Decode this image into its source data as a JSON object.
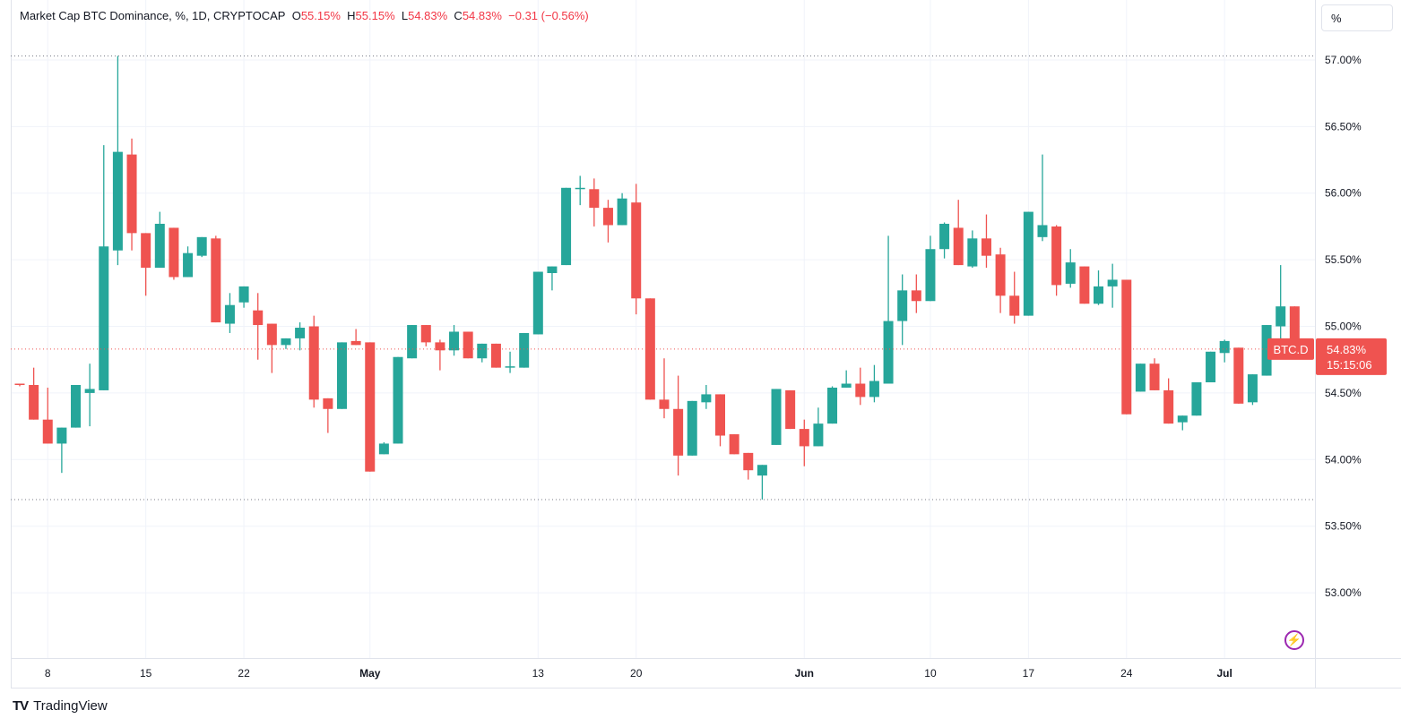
{
  "legend": {
    "title": "Market Cap BTC Dominance, %, 1D, CRYPTOCAP",
    "o_label": "O",
    "o": "55.15%",
    "h_label": "H",
    "h": "55.15%",
    "l_label": "L",
    "l": "54.83%",
    "c_label": "C",
    "c": "54.83%",
    "change": "−0.31 (−0.56%)"
  },
  "scale_button": "%",
  "symbol_tag": "BTC.D",
  "last_price": "54.83%",
  "countdown": "15:15:06",
  "footer": {
    "logo": "TV",
    "brand": "TradingView"
  },
  "icons": {
    "replay": "lightning-icon"
  },
  "colors": {
    "up": "#26a69a",
    "down": "#ef5350",
    "accent": "#f23645",
    "grid": "#f0f3fa"
  },
  "chart_data": {
    "type": "candlestick",
    "title": "Market Cap BTC Dominance, %, 1D, CRYPTOCAP",
    "ylabel": "%",
    "ylim": [
      52.51,
      57.45
    ],
    "y_ticks": [
      "57.00%",
      "56.50%",
      "56.00%",
      "55.50%",
      "55.00%",
      "54.50%",
      "54.00%",
      "53.50%",
      "53.00%"
    ],
    "y_tick_values": [
      57.0,
      56.5,
      56.0,
      55.5,
      55.0,
      54.5,
      54.0,
      53.5,
      53.0
    ],
    "x_ticks": [
      {
        "label": "8",
        "index": 2
      },
      {
        "label": "15",
        "index": 9
      },
      {
        "label": "22",
        "index": 16
      },
      {
        "label": "May",
        "index": 25
      },
      {
        "label": "13",
        "index": 37
      },
      {
        "label": "20",
        "index": 44
      },
      {
        "label": "Jun",
        "index": 56
      },
      {
        "label": "10",
        "index": 65
      },
      {
        "label": "17",
        "index": 72
      },
      {
        "label": "24",
        "index": 79
      },
      {
        "label": "Jul",
        "index": 86
      }
    ],
    "range_high": 57.03,
    "range_low": 53.7,
    "last": 54.83,
    "columns": [
      "date",
      "open",
      "high",
      "low",
      "close"
    ],
    "candles": [
      [
        "Apr 6",
        54.57,
        54.57,
        54.55,
        54.56
      ],
      [
        "Apr 7",
        54.56,
        54.69,
        54.3,
        54.3
      ],
      [
        "Apr 8",
        54.3,
        54.54,
        54.12,
        54.12
      ],
      [
        "Apr 9",
        54.12,
        54.24,
        53.9,
        54.24
      ],
      [
        "Apr 10",
        54.24,
        54.56,
        54.24,
        54.56
      ],
      [
        "Apr 11",
        54.5,
        54.72,
        54.25,
        54.53
      ],
      [
        "Apr 12",
        54.52,
        56.36,
        54.52,
        55.6
      ],
      [
        "Apr 13",
        55.57,
        57.03,
        55.46,
        56.31
      ],
      [
        "Apr 14",
        56.29,
        56.41,
        55.57,
        55.7
      ],
      [
        "Apr 15",
        55.7,
        55.7,
        55.23,
        55.44
      ],
      [
        "Apr 16",
        55.44,
        55.86,
        55.44,
        55.77
      ],
      [
        "Apr 17",
        55.74,
        55.74,
        55.35,
        55.37
      ],
      [
        "Apr 18",
        55.37,
        55.6,
        55.37,
        55.55
      ],
      [
        "Apr 19",
        55.53,
        55.67,
        55.52,
        55.67
      ],
      [
        "Apr 20",
        55.66,
        55.68,
        55.03,
        55.03
      ],
      [
        "Apr 21",
        55.02,
        55.25,
        54.95,
        55.16
      ],
      [
        "Apr 22",
        55.18,
        55.3,
        55.14,
        55.3
      ],
      [
        "Apr 23",
        55.12,
        55.25,
        54.75,
        55.01
      ],
      [
        "Apr 24",
        55.02,
        55.02,
        54.65,
        54.86
      ],
      [
        "Apr 25",
        54.86,
        54.91,
        54.83,
        54.91
      ],
      [
        "Apr 26",
        54.91,
        55.03,
        54.82,
        54.99
      ],
      [
        "Apr 27",
        55.0,
        55.08,
        54.39,
        54.45
      ],
      [
        "Apr 28",
        54.46,
        54.46,
        54.2,
        54.38
      ],
      [
        "Apr 29",
        54.38,
        54.88,
        54.38,
        54.88
      ],
      [
        "Apr 30",
        54.89,
        54.98,
        54.86,
        54.86
      ],
      [
        "May 1",
        54.88,
        54.88,
        53.91,
        53.91
      ],
      [
        "May 2",
        54.04,
        54.13,
        54.04,
        54.12
      ],
      [
        "May 3",
        54.12,
        54.77,
        54.12,
        54.77
      ],
      [
        "May 4",
        54.76,
        55.01,
        54.76,
        55.01
      ],
      [
        "May 5",
        55.01,
        55.01,
        54.85,
        54.88
      ],
      [
        "May 6",
        54.88,
        54.9,
        54.67,
        54.82
      ],
      [
        "May 7",
        54.82,
        55.01,
        54.78,
        54.96
      ],
      [
        "May 8",
        54.96,
        54.96,
        54.76,
        54.76
      ],
      [
        "May 9",
        54.76,
        54.87,
        54.73,
        54.87
      ],
      [
        "May 10",
        54.87,
        54.87,
        54.69,
        54.69
      ],
      [
        "May 11",
        54.7,
        54.81,
        54.65,
        54.7
      ],
      [
        "May 12",
        54.69,
        54.95,
        54.69,
        54.95
      ],
      [
        "May 13",
        54.94,
        55.41,
        54.94,
        55.41
      ],
      [
        "May 14",
        55.4,
        55.45,
        55.27,
        55.45
      ],
      [
        "May 15",
        55.46,
        56.04,
        55.46,
        56.04
      ],
      [
        "May 16",
        56.03,
        56.13,
        55.91,
        56.04
      ],
      [
        "May 17",
        56.03,
        56.11,
        55.75,
        55.89
      ],
      [
        "May 18",
        55.89,
        55.95,
        55.63,
        55.76
      ],
      [
        "May 19",
        55.76,
        56.0,
        55.76,
        55.96
      ],
      [
        "May 20",
        55.93,
        56.07,
        55.09,
        55.21
      ],
      [
        "May 21",
        55.21,
        55.21,
        54.45,
        54.45
      ],
      [
        "May 22",
        54.45,
        54.76,
        54.31,
        54.38
      ],
      [
        "May 23",
        54.38,
        54.63,
        53.88,
        54.03
      ],
      [
        "May 24",
        54.03,
        54.44,
        54.03,
        54.44
      ],
      [
        "May 25",
        54.43,
        54.56,
        54.38,
        54.49
      ],
      [
        "May 26",
        54.49,
        54.49,
        54.1,
        54.18
      ],
      [
        "May 27",
        54.19,
        54.19,
        54.04,
        54.04
      ],
      [
        "May 28",
        54.05,
        54.05,
        53.85,
        53.92
      ],
      [
        "May 29",
        53.88,
        53.96,
        53.7,
        53.96
      ],
      [
        "May 30",
        54.11,
        54.53,
        54.11,
        54.53
      ],
      [
        "May 31",
        54.52,
        54.52,
        54.23,
        54.23
      ],
      [
        "Jun 1",
        54.23,
        54.3,
        53.95,
        54.1
      ],
      [
        "Jun 2",
        54.1,
        54.39,
        54.1,
        54.27
      ],
      [
        "Jun 3",
        54.27,
        54.55,
        54.27,
        54.54
      ],
      [
        "Jun 4",
        54.54,
        54.67,
        54.54,
        54.57
      ],
      [
        "Jun 5",
        54.57,
        54.69,
        54.41,
        54.47
      ],
      [
        "Jun 6",
        54.47,
        54.71,
        54.43,
        54.59
      ],
      [
        "Jun 7",
        54.57,
        55.68,
        54.57,
        55.04
      ],
      [
        "Jun 8",
        55.04,
        55.39,
        54.86,
        55.27
      ],
      [
        "Jun 9",
        55.27,
        55.39,
        55.1,
        55.19
      ],
      [
        "Jun 10",
        55.19,
        55.68,
        55.19,
        55.58
      ],
      [
        "Jun 11",
        55.58,
        55.78,
        55.51,
        55.77
      ],
      [
        "Jun 12",
        55.74,
        55.95,
        55.46,
        55.46
      ],
      [
        "Jun 13",
        55.45,
        55.72,
        55.44,
        55.66
      ],
      [
        "Jun 14",
        55.66,
        55.84,
        55.44,
        55.53
      ],
      [
        "Jun 15",
        55.54,
        55.59,
        55.1,
        55.23
      ],
      [
        "Jun 16",
        55.23,
        55.41,
        55.02,
        55.08
      ],
      [
        "Jun 17",
        55.08,
        55.86,
        55.08,
        55.86
      ],
      [
        "Jun 18",
        55.67,
        56.29,
        55.64,
        55.76
      ],
      [
        "Jun 19",
        55.75,
        55.76,
        55.23,
        55.31
      ],
      [
        "Jun 20",
        55.32,
        55.58,
        55.29,
        55.48
      ],
      [
        "Jun 21",
        55.45,
        55.45,
        55.17,
        55.17
      ],
      [
        "Jun 22",
        55.17,
        55.42,
        55.16,
        55.3
      ],
      [
        "Jun 23",
        55.3,
        55.47,
        55.14,
        55.35
      ],
      [
        "Jun 24",
        55.35,
        55.35,
        54.34,
        54.34
      ],
      [
        "Jun 25",
        54.51,
        54.72,
        54.51,
        54.72
      ],
      [
        "Jun 26",
        54.72,
        54.76,
        54.52,
        54.52
      ],
      [
        "Jun 27",
        54.52,
        54.61,
        54.27,
        54.27
      ],
      [
        "Jun 28",
        54.28,
        54.33,
        54.22,
        54.33
      ],
      [
        "Jun 29",
        54.33,
        54.58,
        54.33,
        54.58
      ],
      [
        "Jun 30",
        54.58,
        54.81,
        54.58,
        54.81
      ],
      [
        "Jul 1",
        54.8,
        54.9,
        54.73,
        54.89
      ],
      [
        "Jul 2",
        54.84,
        54.84,
        54.42,
        54.42
      ],
      [
        "Jul 3",
        54.43,
        54.64,
        54.41,
        54.64
      ],
      [
        "Jul 4",
        54.63,
        55.01,
        54.63,
        55.01
      ],
      [
        "Jul 5",
        55.0,
        55.46,
        54.83,
        55.15
      ],
      [
        "Jul 6",
        55.15,
        55.15,
        54.83,
        54.83
      ]
    ]
  }
}
